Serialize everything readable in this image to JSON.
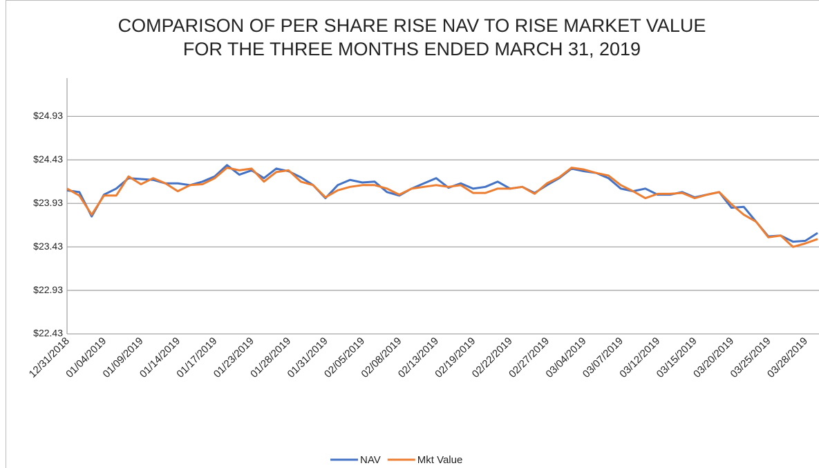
{
  "chart_data": {
    "type": "line",
    "title": [
      "COMPARISON OF PER SHARE RISE NAV TO RISE MARKET VALUE",
      "FOR THE THREE MONTHS ENDED MARCH 31, 2019"
    ],
    "categories": [
      "12/31/2018",
      null,
      null,
      "01/04/2019",
      null,
      null,
      "01/09/2019",
      null,
      null,
      "01/14/2019",
      null,
      null,
      "01/17/2019",
      null,
      null,
      "01/23/2019",
      null,
      null,
      "01/28/2019",
      null,
      null,
      "01/31/2019",
      null,
      null,
      "02/05/2019",
      null,
      null,
      "02/08/2019",
      null,
      null,
      "02/13/2019",
      null,
      null,
      "02/19/2019",
      null,
      null,
      "02/22/2019",
      null,
      null,
      "02/27/2019",
      null,
      null,
      "03/04/2019",
      null,
      null,
      "03/07/2019",
      null,
      null,
      "03/12/2019",
      null,
      null,
      "03/15/2019",
      null,
      null,
      "03/20/2019",
      null,
      null,
      "03/25/2019",
      null,
      null,
      "03/28/2019",
      null
    ],
    "series": [
      {
        "name": "NAV",
        "color": "#4472c4",
        "values": [
          24.08,
          24.06,
          23.78,
          24.03,
          24.1,
          24.22,
          24.21,
          24.2,
          24.16,
          24.16,
          24.14,
          24.18,
          24.24,
          24.37,
          24.26,
          24.31,
          24.22,
          24.33,
          24.3,
          24.23,
          24.14,
          23.99,
          24.14,
          24.2,
          24.17,
          24.18,
          24.06,
          24.02,
          24.1,
          24.16,
          24.22,
          24.11,
          24.16,
          24.1,
          24.12,
          24.18,
          24.1,
          24.12,
          24.05,
          24.14,
          24.22,
          24.33,
          24.3,
          24.28,
          24.22,
          24.1,
          24.07,
          24.1,
          24.03,
          24.03,
          24.06,
          24.0,
          24.03,
          24.06,
          23.88,
          23.89,
          23.72,
          23.55,
          23.56,
          23.49,
          23.5,
          23.59
        ]
      },
      {
        "name": "Mkt Value",
        "color": "#ed7d31",
        "values": [
          24.1,
          24.02,
          23.8,
          24.02,
          24.02,
          24.24,
          24.15,
          24.22,
          24.16,
          24.07,
          24.14,
          24.15,
          24.22,
          24.34,
          24.31,
          24.33,
          24.18,
          24.29,
          24.31,
          24.18,
          24.14,
          24.0,
          24.08,
          24.12,
          24.14,
          24.14,
          24.1,
          24.03,
          24.1,
          24.12,
          24.14,
          24.12,
          24.14,
          24.05,
          24.05,
          24.1,
          24.1,
          24.12,
          24.04,
          24.16,
          24.23,
          24.34,
          24.32,
          24.28,
          24.25,
          24.14,
          24.07,
          23.99,
          24.04,
          24.04,
          24.05,
          23.99,
          24.03,
          24.06,
          23.92,
          23.8,
          23.72,
          23.54,
          23.56,
          23.43,
          23.47,
          23.52
        ]
      }
    ],
    "ylim": [
      22.43,
      25.37
    ],
    "yticks": [
      {
        "value": 22.43,
        "label": "$22.43"
      },
      {
        "value": 22.93,
        "label": "$22.93"
      },
      {
        "value": 23.43,
        "label": "$23.43"
      },
      {
        "value": 23.93,
        "label": "$23.93"
      },
      {
        "value": 24.43,
        "label": "$24.43"
      },
      {
        "value": 24.93,
        "label": "$24.93"
      }
    ],
    "grid": true,
    "legend": "bottom"
  }
}
